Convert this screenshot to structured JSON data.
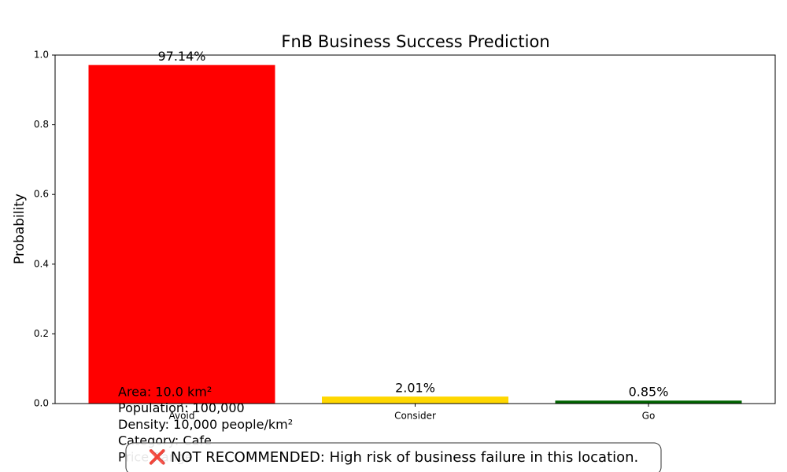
{
  "chart_data": {
    "type": "bar",
    "title": "FnB Business Success Prediction",
    "y_label": "Probability",
    "categories": [
      "Avoid",
      "Consider",
      "Go"
    ],
    "values": [
      0.9714,
      0.0201,
      0.0085
    ],
    "value_labels": [
      "97.14%",
      "2.01%",
      "0.85%"
    ],
    "colors": [
      "#ff0000",
      "#ffd700",
      "#006400"
    ],
    "ylim": [
      0,
      1
    ],
    "yticks": [
      {
        "value": 0,
        "label": "0.0"
      },
      0.2,
      0.4,
      0.6,
      0.8,
      {
        "value": 1,
        "label": "1.0"
      }
    ],
    "grid": false,
    "annotations": [
      "Area: 10.0 km²",
      "Population: 100,000",
      "Density: 10,000 people/km²",
      "Category: Cafe",
      "Price Range"
    ],
    "recommendation": "❌ NOT RECOMMENDED: High risk of business failure in this location."
  }
}
